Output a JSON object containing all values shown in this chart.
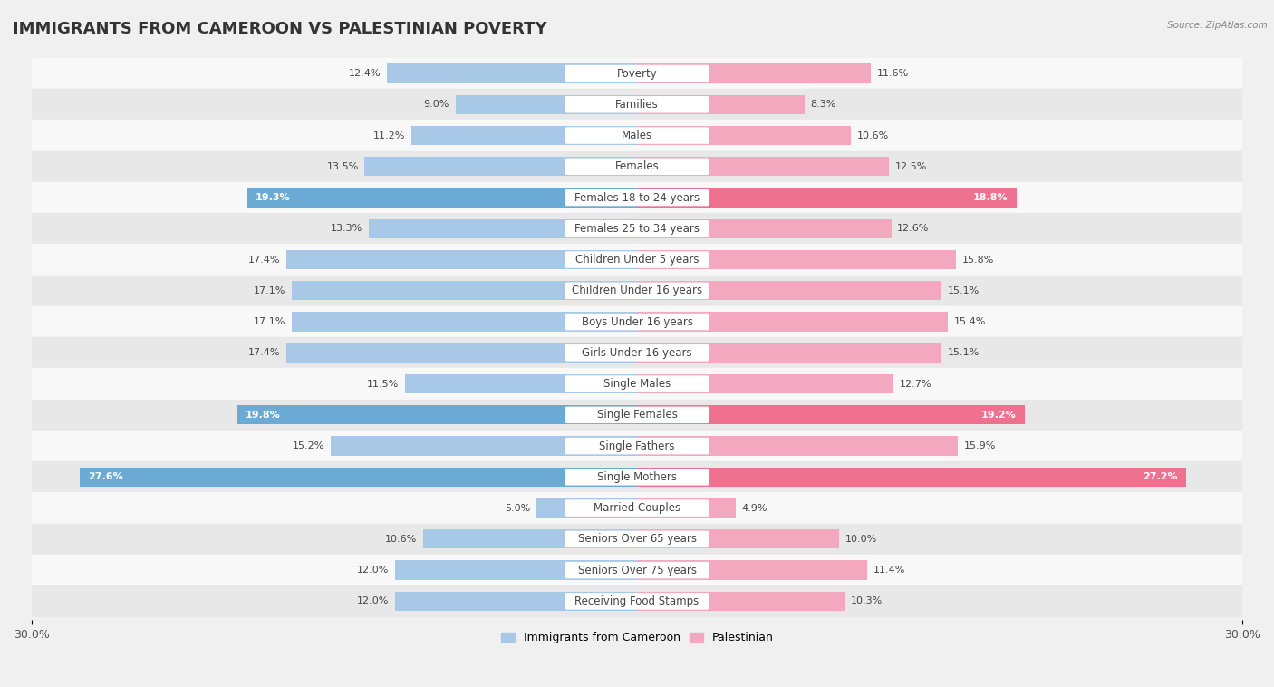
{
  "title": "IMMIGRANTS FROM CAMEROON VS PALESTINIAN POVERTY",
  "source": "Source: ZipAtlas.com",
  "categories": [
    "Poverty",
    "Families",
    "Males",
    "Females",
    "Females 18 to 24 years",
    "Females 25 to 34 years",
    "Children Under 5 years",
    "Children Under 16 years",
    "Boys Under 16 years",
    "Girls Under 16 years",
    "Single Males",
    "Single Females",
    "Single Fathers",
    "Single Mothers",
    "Married Couples",
    "Seniors Over 65 years",
    "Seniors Over 75 years",
    "Receiving Food Stamps"
  ],
  "left_values": [
    12.4,
    9.0,
    11.2,
    13.5,
    19.3,
    13.3,
    17.4,
    17.1,
    17.1,
    17.4,
    11.5,
    19.8,
    15.2,
    27.6,
    5.0,
    10.6,
    12.0,
    12.0
  ],
  "right_values": [
    11.6,
    8.3,
    10.6,
    12.5,
    18.8,
    12.6,
    15.8,
    15.1,
    15.4,
    15.1,
    12.7,
    19.2,
    15.9,
    27.2,
    4.9,
    10.0,
    11.4,
    10.3
  ],
  "left_color": "#a8c8e8",
  "right_color": "#f4a8c0",
  "left_highlight_color": "#6aaad4",
  "right_highlight_color": "#f07090",
  "highlight_rows": [
    4,
    11,
    13
  ],
  "left_label": "Immigrants from Cameroon",
  "right_label": "Palestinian",
  "xlim": 30.0,
  "background_color": "#f0f0f0",
  "row_bg_light": "#f8f8f8",
  "row_bg_dark": "#e8e8e8",
  "title_fontsize": 13,
  "label_fontsize": 8.5,
  "value_fontsize": 8,
  "axis_label_only_at_ends": true
}
